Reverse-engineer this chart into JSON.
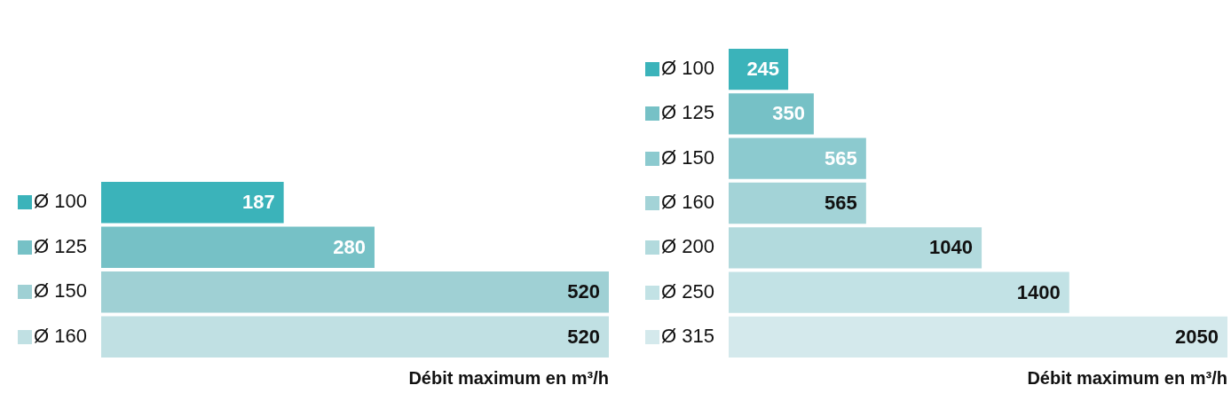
{
  "chart_data": [
    {
      "type": "bar",
      "orientation": "horizontal",
      "xlabel": "Débit maximum en m³/h",
      "categories": [
        "Ø 100",
        "Ø 125",
        "Ø 150",
        "Ø 160"
      ],
      "values": [
        187,
        280,
        520,
        520
      ],
      "colors": [
        "#3bb3ba",
        "#76c1c6",
        "#9fd0d4",
        "#c0e0e3"
      ],
      "data_labels": true,
      "grid": false,
      "legend": false
    },
    {
      "type": "bar",
      "orientation": "horizontal",
      "xlabel": "Débit maximum en m³/h",
      "categories": [
        "Ø 100",
        "Ø 125",
        "Ø 150",
        "Ø 160",
        "Ø 200",
        "Ø 250",
        "Ø 315"
      ],
      "values": [
        245,
        350,
        565,
        565,
        1040,
        1400,
        2050
      ],
      "colors": [
        "#3bb3ba",
        "#76c1c6",
        "#8ccacf",
        "#a3d3d7",
        "#b2dadd",
        "#c2e2e5",
        "#d4e9ec"
      ],
      "data_labels": true,
      "grid": false,
      "legend": false
    }
  ]
}
